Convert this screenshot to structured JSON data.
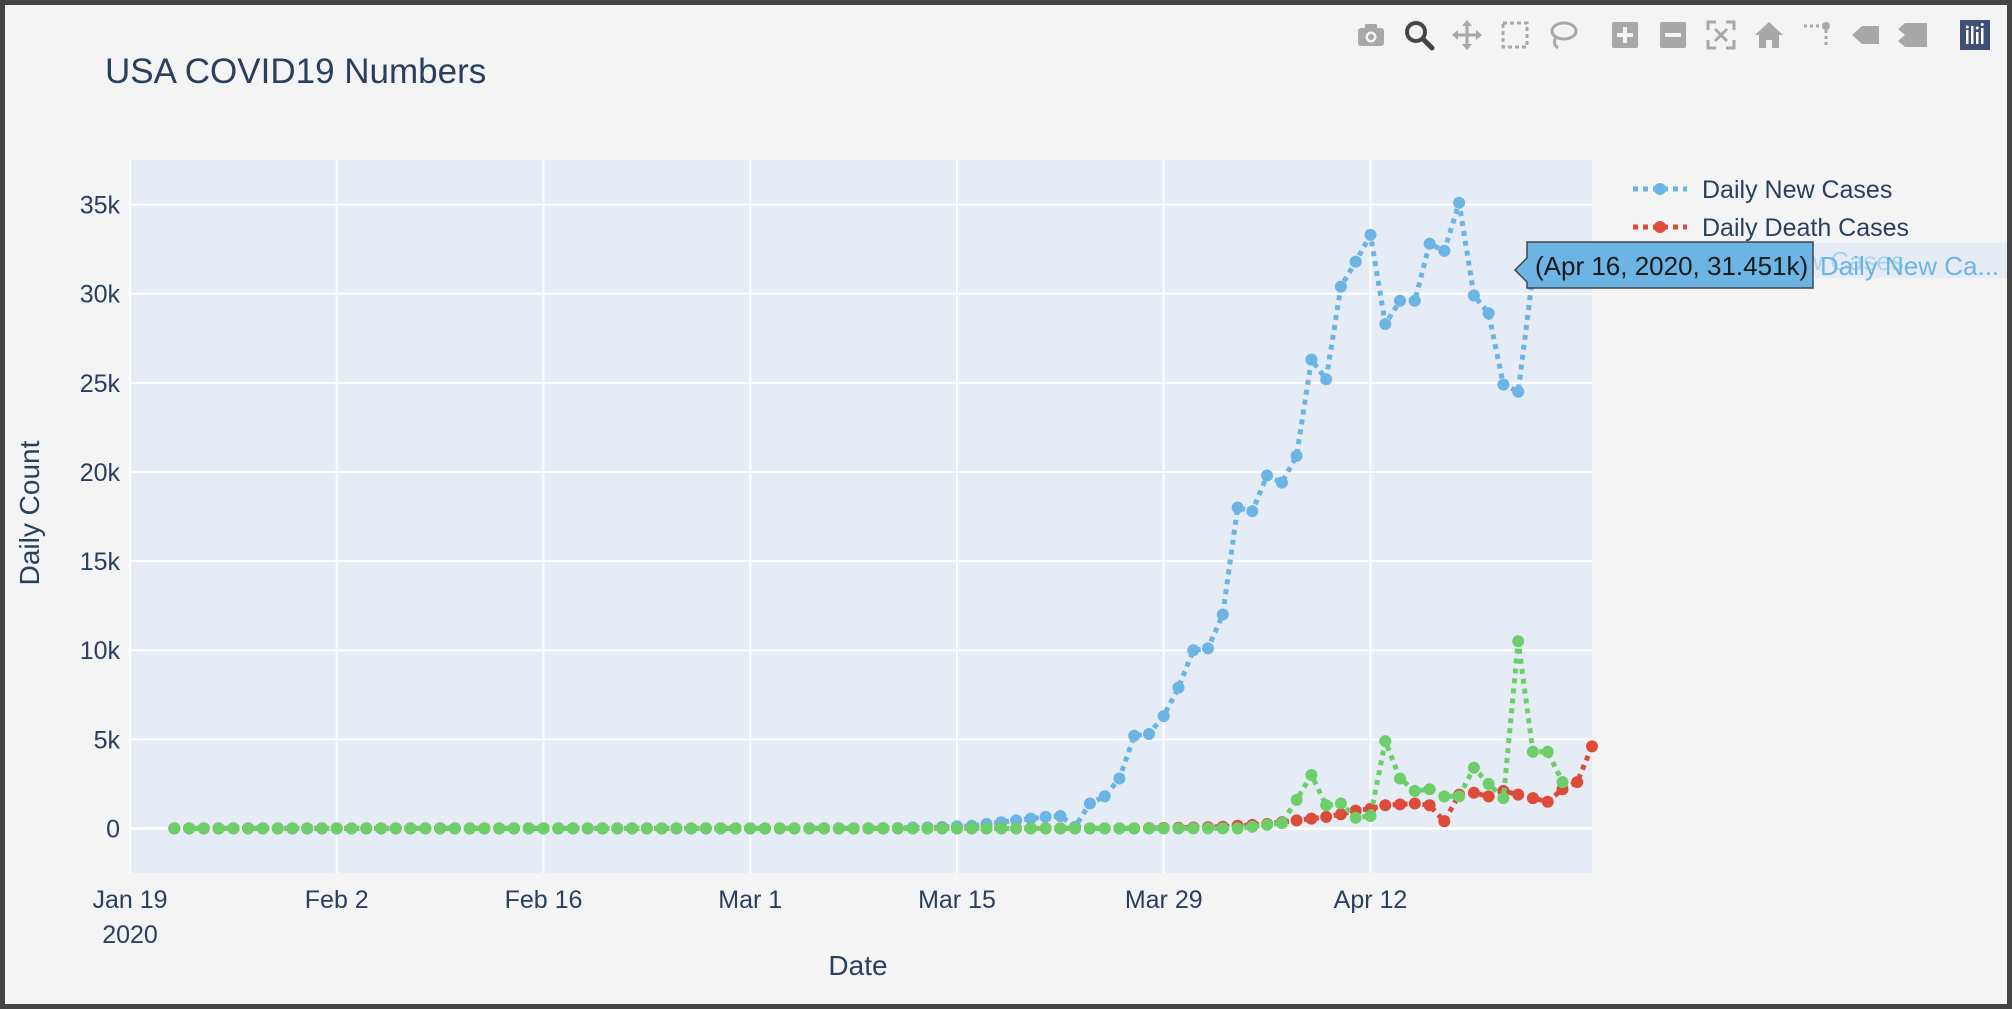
{
  "colors": {
    "background": "#f4f4f4",
    "plot_bg": "#e5ecf6",
    "grid": "#ffffff",
    "text": "#2a3f5f",
    "new_cases": "#6cb4e4",
    "death_cases": "#de4b39",
    "third_series": "#6ccf6a",
    "modebar_icon": "#a8a8a8",
    "modebar_active": "#444444",
    "plotly_logo": "#3f4f75"
  },
  "modebar": [
    {
      "name": "camera-icon",
      "active": false
    },
    {
      "name": "zoom-icon",
      "active": true
    },
    {
      "name": "pan-icon",
      "active": false
    },
    {
      "name": "box-select-icon",
      "active": false
    },
    {
      "name": "lasso-select-icon",
      "active": false
    },
    {
      "name": "zoom-in-icon",
      "active": false
    },
    {
      "name": "zoom-out-icon",
      "active": false
    },
    {
      "name": "autoscale-icon",
      "active": false
    },
    {
      "name": "reset-axes-icon",
      "active": false
    },
    {
      "name": "spike-lines-icon",
      "active": false
    },
    {
      "name": "hover-closest-icon",
      "active": false
    },
    {
      "name": "hover-compare-icon",
      "active": false
    },
    {
      "name": "plotly-logo-icon",
      "active": false
    }
  ],
  "chart_data": {
    "type": "line",
    "title": "USA COVID19 Numbers",
    "xlabel": "Date",
    "ylabel": "Daily Count",
    "x_start": "2020-01-22",
    "x_end": "2020-04-16",
    "xlim": [
      "2020-01-19",
      "2020-04-27"
    ],
    "ylim": [
      -2500,
      37500
    ],
    "x_ticks": [
      {
        "date": "2020-01-19",
        "label": "Jan 19",
        "sublabel": "2020"
      },
      {
        "date": "2020-02-02",
        "label": "Feb 2"
      },
      {
        "date": "2020-02-16",
        "label": "Feb 16"
      },
      {
        "date": "2020-03-01",
        "label": "Mar 1"
      },
      {
        "date": "2020-03-15",
        "label": "Mar 15"
      },
      {
        "date": "2020-03-29",
        "label": "Mar 29"
      },
      {
        "date": "2020-04-12",
        "label": "Apr 12"
      }
    ],
    "y_ticks": [
      {
        "value": 0,
        "label": "0"
      },
      {
        "value": 5000,
        "label": "5k"
      },
      {
        "value": 10000,
        "label": "10k"
      },
      {
        "value": 15000,
        "label": "15k"
      },
      {
        "value": 20000,
        "label": "20k"
      },
      {
        "value": 25000,
        "label": "25k"
      },
      {
        "value": 30000,
        "label": "30k"
      },
      {
        "value": 35000,
        "label": "35k"
      }
    ],
    "grid": true,
    "legend_position": "top-right",
    "series": [
      {
        "name": "Daily New Cases",
        "color": "#6cb4e4",
        "dash": "dot",
        "in_legend": true,
        "values": [
          0,
          0,
          0,
          0,
          0,
          0,
          0,
          0,
          0,
          0,
          0,
          0,
          0,
          0,
          0,
          0,
          0,
          0,
          0,
          0,
          0,
          0,
          0,
          0,
          0,
          0,
          0,
          0,
          0,
          0,
          0,
          0,
          0,
          0,
          0,
          0,
          0,
          0,
          0,
          0,
          0,
          0,
          0,
          0,
          0,
          0,
          0,
          10,
          20,
          20,
          50,
          60,
          80,
          120,
          150,
          250,
          350,
          450,
          550,
          650,
          700,
          100,
          1400,
          1800,
          2800,
          5200,
          5300,
          6300,
          7900,
          10000,
          10100,
          12000,
          18000,
          17800,
          19800,
          19400,
          20900,
          26300,
          25200,
          30400,
          31800,
          33300,
          28300,
          29600,
          29600,
          32800,
          32400,
          35100,
          29900,
          28900,
          24900,
          24500,
          31100,
          31451
        ]
      },
      {
        "name": "Daily Death Cases",
        "color": "#de4b39",
        "dash": "dot",
        "in_legend": true,
        "values": [
          0,
          0,
          0,
          0,
          0,
          0,
          0,
          0,
          0,
          0,
          0,
          0,
          0,
          0,
          0,
          0,
          0,
          0,
          0,
          0,
          0,
          0,
          0,
          0,
          0,
          0,
          0,
          0,
          0,
          0,
          0,
          0,
          0,
          0,
          0,
          0,
          0,
          0,
          0,
          0,
          0,
          0,
          0,
          0,
          0,
          0,
          0,
          0,
          0,
          0,
          0,
          0,
          0,
          0,
          0,
          0,
          0,
          0,
          0,
          0,
          0,
          0,
          0,
          0,
          0,
          0,
          20,
          30,
          40,
          50,
          70,
          100,
          150,
          200,
          250,
          350,
          450,
          550,
          650,
          800,
          1000,
          1100,
          1300,
          1350,
          1400,
          1300,
          400,
          1900,
          2000,
          1800,
          2100,
          1900,
          1700,
          1500,
          2200,
          2600,
          4600
        ]
      },
      {
        "name": "",
        "color": "#6ccf6a",
        "dash": "dot",
        "in_legend": false,
        "values": [
          0,
          0,
          0,
          0,
          0,
          0,
          0,
          0,
          0,
          0,
          0,
          0,
          0,
          0,
          0,
          0,
          0,
          0,
          0,
          0,
          0,
          0,
          0,
          0,
          0,
          0,
          0,
          0,
          0,
          0,
          0,
          0,
          0,
          0,
          0,
          0,
          0,
          0,
          0,
          0,
          0,
          0,
          0,
          0,
          0,
          0,
          0,
          0,
          0,
          0,
          0,
          0,
          0,
          0,
          0,
          0,
          0,
          0,
          0,
          0,
          0,
          0,
          0,
          0,
          0,
          0,
          0,
          0,
          0,
          0,
          0,
          0,
          0,
          100,
          200,
          300,
          1600,
          3000,
          1300,
          1400,
          600,
          700,
          4900,
          2800,
          2100,
          2200,
          1800,
          1800,
          3400,
          2500,
          1700,
          10500,
          4300,
          4300,
          2600
        ]
      }
    ],
    "hover": {
      "text": "(Apr 16, 2020, 31.451k)",
      "series_name": "Daily New Ca...",
      "ghost_text": "Daily New Cases"
    }
  }
}
